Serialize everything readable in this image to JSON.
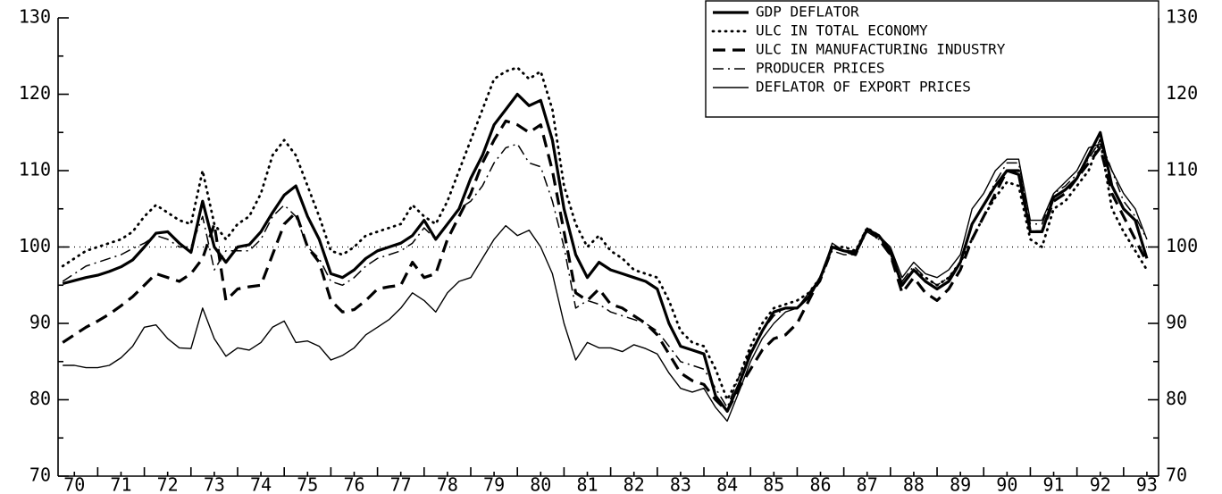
{
  "chart_data": {
    "type": "line",
    "legend": "upper right",
    "reference_line": 100,
    "xlim": [
      70.15,
      93.75
    ],
    "xticks": [
      70,
      71,
      72,
      73,
      74,
      75,
      76,
      77,
      78,
      79,
      80,
      81,
      82,
      83,
      84,
      85,
      86,
      87,
      88,
      89,
      90,
      91,
      92,
      93
    ],
    "ylim": [
      70,
      130
    ],
    "yticks": [
      70,
      80,
      90,
      100,
      110,
      120,
      130
    ],
    "y2lim": [
      70,
      130
    ],
    "y2ticks": [
      70,
      80,
      90,
      100,
      110,
      120,
      130
    ],
    "x": [
      70.25,
      70.5,
      70.75,
      71,
      71.25,
      71.5,
      71.75,
      72,
      72.25,
      72.5,
      72.75,
      73,
      73.25,
      73.5,
      73.75,
      74,
      74.25,
      74.5,
      74.75,
      75,
      75.25,
      75.5,
      75.75,
      76,
      76.25,
      76.5,
      76.75,
      77,
      77.25,
      77.5,
      77.75,
      78,
      78.25,
      78.5,
      78.75,
      79,
      79.25,
      79.5,
      79.75,
      80,
      80.25,
      80.5,
      80.75,
      81,
      81.25,
      81.5,
      81.75,
      82,
      82.25,
      82.5,
      82.75,
      83,
      83.25,
      83.5,
      83.75,
      84,
      84.25,
      84.5,
      84.75,
      85,
      85.25,
      85.5,
      85.75,
      86,
      86.25,
      86.5,
      86.75,
      87,
      87.25,
      87.5,
      87.75,
      88,
      88.25,
      88.5,
      88.75,
      89,
      89.25,
      89.5,
      89.75,
      90,
      90.25,
      90.5,
      90.75,
      91,
      91.25,
      91.5,
      91.75,
      92,
      92.25,
      92.5,
      92.75,
      93,
      93.25,
      93.5
    ],
    "series": [
      {
        "name": "GDP DEFLATOR",
        "color": "#000000",
        "style": "solid",
        "width": 3.2,
        "values": [
          95.2,
          95.6,
          96,
          96.3,
          96.8,
          97.4,
          98.3,
          100,
          101.8,
          102,
          100.5,
          99.3,
          106,
          100,
          98,
          100,
          100.3,
          102,
          104.5,
          106.8,
          108,
          104,
          101,
          96.5,
          96,
          97,
          98.5,
          99.5,
          100,
          100.5,
          101.5,
          103.5,
          101,
          103,
          105,
          109,
          112,
          116,
          118,
          120,
          118.5,
          119.2,
          114,
          105,
          99,
          96,
          98,
          97,
          96.5,
          96,
          95.5,
          94.5,
          90,
          87,
          86.5,
          86,
          80.5,
          78.5,
          82,
          86,
          89,
          91.5,
          92,
          92,
          93.5,
          96,
          100,
          99.5,
          99.2,
          102.3,
          101.5,
          99.5,
          95,
          97,
          95.5,
          94.5,
          95.5,
          98,
          103,
          105.5,
          108,
          110,
          109.5,
          102,
          102,
          106.5,
          107.5,
          109,
          112,
          115,
          108,
          105,
          103.5,
          98.5
        ]
      },
      {
        "name": "ULC IN TOTAL ECONOMY",
        "color": "#000000",
        "style": "dotted",
        "width": 2.8,
        "values": [
          97.5,
          98.5,
          99.5,
          100,
          100.5,
          101,
          102,
          104,
          105.5,
          104.5,
          103.5,
          103,
          110,
          103,
          101,
          103,
          104,
          107,
          112,
          114,
          112,
          108,
          104,
          99.5,
          99,
          100,
          101.5,
          102,
          102.5,
          103,
          105.5,
          104,
          103,
          106,
          110,
          114,
          118,
          122,
          123,
          123.5,
          122,
          123,
          118,
          108,
          103,
          100,
          101.5,
          99.5,
          98.5,
          97,
          96.5,
          96,
          93,
          89,
          87.5,
          87,
          84,
          80,
          83,
          87,
          90,
          92,
          92.5,
          93,
          94,
          96,
          100,
          100,
          99.5,
          102.5,
          101.5,
          99,
          95,
          97,
          96,
          95,
          96,
          98,
          101,
          104,
          106.5,
          108.5,
          108,
          101,
          100,
          105,
          106,
          108,
          110,
          114,
          105,
          102,
          99.5,
          97
        ]
      },
      {
        "name": "ULC IN MANUFACTURING INDUSTRY",
        "color": "#000000",
        "style": "dashed",
        "width": 3.2,
        "values": [
          87.5,
          88.5,
          89.5,
          90.3,
          91.2,
          92.3,
          93.5,
          95,
          96.5,
          96,
          95.5,
          96.5,
          98.5,
          103,
          93,
          94.5,
          94.8,
          95,
          99,
          103,
          104.5,
          100,
          98,
          93,
          91.5,
          91.8,
          93,
          94.5,
          94.8,
          95,
          98,
          96,
          96.5,
          101,
          104,
          107,
          111,
          114,
          116.5,
          116,
          115,
          116,
          110,
          102,
          94,
          93,
          94.5,
          92.5,
          92,
          91,
          90,
          88.5,
          86,
          83.5,
          82.5,
          82,
          80,
          78.5,
          81.5,
          84,
          86.5,
          88,
          88.5,
          90,
          93,
          96,
          100,
          99.5,
          99,
          102.5,
          101,
          99,
          94,
          96,
          94,
          93,
          94.5,
          97,
          101,
          104,
          107,
          110,
          110,
          102,
          102,
          106,
          107,
          109,
          111,
          113,
          107,
          104,
          101,
          98
        ]
      },
      {
        "name": "PRODUCER PRICES",
        "color": "#000000",
        "style": "dashdot",
        "width": 1.5,
        "values": [
          95.5,
          96.5,
          97.5,
          98,
          98.5,
          99,
          99.8,
          100.5,
          101.5,
          101,
          100,
          100,
          104,
          97,
          99.5,
          99.5,
          99.5,
          101,
          104,
          105.5,
          104,
          100,
          98.5,
          95.5,
          95,
          96,
          97.5,
          98.5,
          99,
          99.5,
          100.5,
          102.5,
          101,
          103,
          105,
          106,
          108,
          111,
          113,
          113.5,
          111,
          110.5,
          106,
          100,
          92,
          93,
          92.5,
          91.5,
          91,
          90.5,
          90,
          89,
          87,
          85,
          84.5,
          84,
          81.5,
          79,
          83,
          86.5,
          89,
          91,
          92,
          92,
          93.5,
          95.5,
          99.5,
          99,
          99,
          102,
          101,
          99,
          95.5,
          97.5,
          96,
          95,
          96,
          98,
          103,
          105.5,
          108.5,
          111,
          111,
          103,
          103,
          107,
          108,
          109.5,
          111.5,
          114,
          110,
          106,
          104,
          101
        ]
      },
      {
        "name": "DEFLATOR OF EXPORT PRICES",
        "color": "#000000",
        "style": "solid",
        "width": 1.4,
        "values": [
          84.5,
          84.5,
          84.2,
          84.2,
          84.5,
          85.5,
          87,
          89.5,
          89.8,
          88,
          86.8,
          86.7,
          92,
          88,
          85.7,
          86.8,
          86.5,
          87.5,
          89.5,
          90.3,
          87.5,
          87.7,
          87,
          85.2,
          85.8,
          86.8,
          88.5,
          89.5,
          90.5,
          92,
          94,
          93,
          91.5,
          94,
          95.5,
          96,
          98.5,
          101,
          102.8,
          101.5,
          102.2,
          100,
          96.5,
          90,
          85.2,
          87.5,
          86.8,
          86.8,
          86.3,
          87.2,
          86.7,
          86,
          83.5,
          81.5,
          81,
          81.5,
          79,
          77.2,
          81,
          85,
          88,
          90,
          91.5,
          92,
          94,
          96,
          100.5,
          99.5,
          99.5,
          102.5,
          101.5,
          100,
          96,
          98,
          96.5,
          96,
          97,
          99,
          105,
          107,
          110,
          111.5,
          111.5,
          103.5,
          103.5,
          107,
          108.5,
          110,
          113,
          113.5,
          110,
          107,
          105,
          101
        ]
      }
    ]
  }
}
